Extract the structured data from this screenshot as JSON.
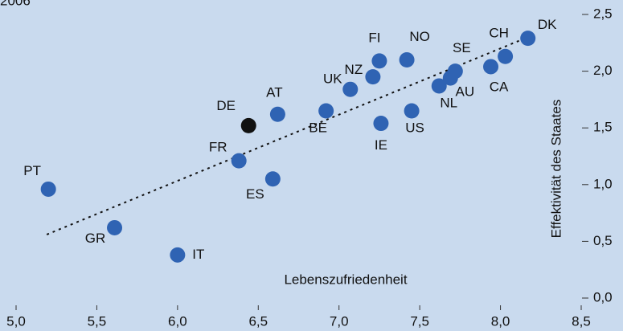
{
  "chart_data": {
    "type": "scatter",
    "title": "2006",
    "x_label": "Lebenszufriedenheit",
    "y_label": "Effektivität des Staates",
    "labels": [
      "PT",
      "GR",
      "IT",
      "FR",
      "ES",
      "DE",
      "AT",
      "BE",
      "UK",
      "NZ",
      "FI",
      "IE",
      "NO",
      "US",
      "NL",
      "AU",
      "SE",
      "CA",
      "CH",
      "DK"
    ],
    "x": [
      5.2,
      5.61,
      6.0,
      6.38,
      6.59,
      6.44,
      6.62,
      6.92,
      7.07,
      7.21,
      7.25,
      7.26,
      7.42,
      7.45,
      7.62,
      7.69,
      7.72,
      7.94,
      8.03,
      8.17
    ],
    "y": [
      0.96,
      0.62,
      0.38,
      1.21,
      1.05,
      1.52,
      1.62,
      1.65,
      1.84,
      1.95,
      2.09,
      1.54,
      2.1,
      1.65,
      1.87,
      1.94,
      2.0,
      2.04,
      2.13,
      2.29
    ],
    "colors": [
      "#2f63b3",
      "#2f63b3",
      "#2f63b3",
      "#2f63b3",
      "#2f63b3",
      "#111111",
      "#2f63b3",
      "#2f63b3",
      "#2f63b3",
      "#2f63b3",
      "#2f63b3",
      "#2f63b3",
      "#2f63b3",
      "#2f63b3",
      "#2f63b3",
      "#2f63b3",
      "#2f63b3",
      "#2f63b3",
      "#2f63b3",
      "#2f63b3"
    ],
    "trendline": {
      "x": [
        5.19,
        8.17
      ],
      "y": [
        0.56,
        2.3
      ]
    },
    "xlim": [
      5.0,
      8.5
    ],
    "xticks": [
      {
        "value": 5.0,
        "label": "5,0"
      },
      {
        "value": 5.5,
        "label": "5,5"
      },
      {
        "value": 6.0,
        "label": "6,0"
      },
      {
        "value": 6.5,
        "label": "6,5"
      },
      {
        "value": 7.0,
        "label": "7,0"
      },
      {
        "value": 7.5,
        "label": "7,5"
      },
      {
        "value": 8.0,
        "label": "8,0"
      },
      {
        "value": 8.5,
        "label": "8,5"
      }
    ],
    "ylim": [
      0,
      2.5
    ],
    "yticks": [
      {
        "value": 0,
        "label": "0,0"
      },
      {
        "value": 0.5,
        "label": "0,5"
      },
      {
        "value": 1.0,
        "label": "1,0"
      },
      {
        "value": 1.5,
        "label": "1,5"
      },
      {
        "value": 2.0,
        "label": "2,0"
      },
      {
        "value": 2.5,
        "label": "2,5"
      }
    ],
    "grid": false
  }
}
